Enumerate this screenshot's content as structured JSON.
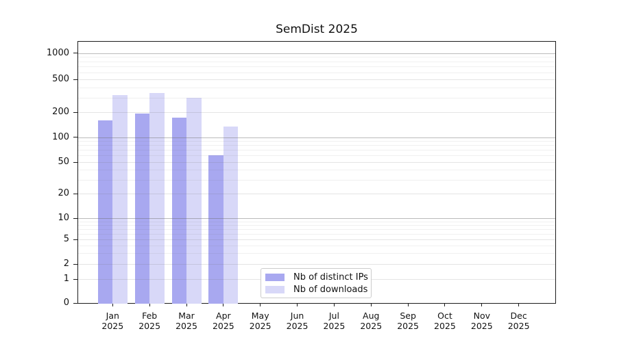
{
  "title": "SemDist 2025",
  "legend": {
    "items": [
      {
        "label": "Nb of distinct IPs",
        "color": "#a8a8f0"
      },
      {
        "label": "Nb of downloads",
        "color": "#d8d8f8"
      }
    ]
  },
  "chart_data": {
    "type": "bar",
    "title": "SemDist 2025",
    "categories": [
      "Jan 2025",
      "Feb 2025",
      "Mar 2025",
      "Apr 2025",
      "May 2025",
      "Jun 2025",
      "Jul 2025",
      "Aug 2025",
      "Sep 2025",
      "Oct 2025",
      "Nov 2025",
      "Dec 2025"
    ],
    "x_tick_line1": [
      "Jan",
      "Feb",
      "Mar",
      "Apr",
      "May",
      "Jun",
      "Jul",
      "Aug",
      "Sep",
      "Oct",
      "Nov",
      "Dec"
    ],
    "x_tick_line2": "2025",
    "series": [
      {
        "name": "Nb of distinct IPs",
        "color": "#a8a8f0",
        "values": [
          158,
          192,
          172,
          60,
          null,
          null,
          null,
          null,
          null,
          null,
          null,
          null
        ]
      },
      {
        "name": "Nb of downloads",
        "color": "#d8d8f8",
        "values": [
          324,
          344,
          298,
          133,
          null,
          null,
          null,
          null,
          null,
          null,
          null,
          null
        ]
      }
    ],
    "xlabel": "",
    "ylabel": "",
    "yaxis": {
      "scale": "symlog",
      "tick_values": [
        0,
        1,
        2,
        5,
        10,
        20,
        50,
        100,
        200,
        500,
        1000
      ],
      "tick_labels": [
        "0",
        "1",
        "2",
        "5",
        "10",
        "20",
        "50",
        "100",
        "200",
        "500",
        "1000"
      ],
      "ylim": [
        0,
        1400
      ],
      "grid": "on",
      "major_grid_values": [
        10,
        100,
        1000
      ],
      "minor_grid_values": [
        3,
        4,
        6,
        7,
        8,
        9,
        30,
        40,
        60,
        70,
        80,
        90,
        300,
        400,
        600,
        700,
        800,
        900
      ]
    },
    "legend_position": "lower center inside"
  }
}
